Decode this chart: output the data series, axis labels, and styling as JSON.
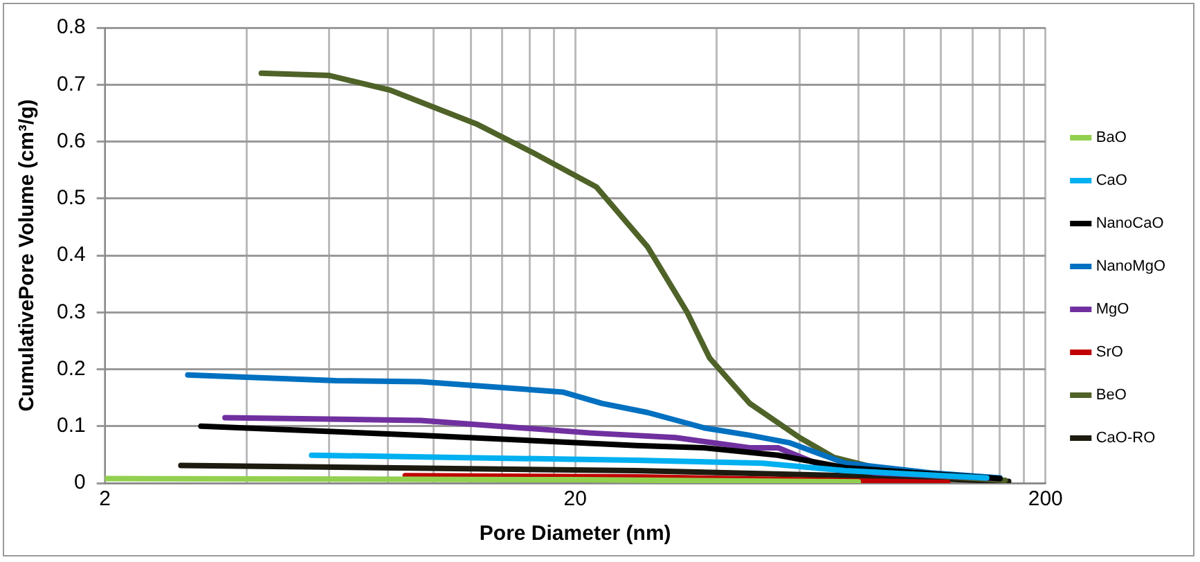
{
  "chart_data": {
    "type": "line",
    "xlabel": "Pore Diameter (nm)",
    "ylabel": "CumulativePore Volume (cm³/g)",
    "log": "x",
    "xlim": [
      2,
      200
    ],
    "xticks": [
      2,
      {
        "value": 4,
        "label": null
      },
      {
        "value": 6,
        "label": null
      },
      {
        "value": 8,
        "label": null
      },
      {
        "value": 10,
        "label": null
      },
      {
        "value": 12,
        "label": null
      },
      {
        "value": 14,
        "label": null
      },
      {
        "value": 16,
        "label": null
      },
      {
        "value": 18,
        "label": null
      },
      20,
      {
        "value": 40,
        "label": null
      },
      {
        "value": 60,
        "label": null
      },
      {
        "value": 80,
        "label": null
      },
      {
        "value": 100,
        "label": null
      },
      {
        "value": 120,
        "label": null
      },
      {
        "value": 140,
        "label": null
      },
      {
        "value": 160,
        "label": null
      },
      {
        "value": 180,
        "label": null
      },
      200
    ],
    "ylim": [
      0,
      0.8
    ],
    "yticks": [
      0,
      0.1,
      0.2,
      0.3,
      0.4,
      0.5,
      0.6,
      0.7,
      0.8
    ],
    "grid": true,
    "legend": "right",
    "marker": "none",
    "line_style": "solid",
    "series": [
      {
        "name": "BaO",
        "color": "#92d050",
        "x": [
          2,
          20,
          80
        ],
        "values": [
          0.008,
          0.006,
          0.002
        ]
      },
      {
        "name": "CaO",
        "color": "#00b0f0",
        "x": [
          5.5,
          27,
          50,
          75,
          150
        ],
        "values": [
          0.049,
          0.04,
          0.035,
          0.022,
          0.009
        ]
      },
      {
        "name": "NanoCaO",
        "color": "#000000",
        "x": [
          3.2,
          9.4,
          27,
          37.6,
          54,
          75,
          160
        ],
        "values": [
          0.1,
          0.084,
          0.066,
          0.062,
          0.049,
          0.027,
          0.008
        ]
      },
      {
        "name": "NanoMgO",
        "color": "#0070c0",
        "x": [
          3,
          6.2,
          9.4,
          18.8,
          22.8,
          28.5,
          37.6,
          47,
          57,
          75,
          114,
          160
        ],
        "values": [
          0.19,
          0.18,
          0.178,
          0.16,
          0.14,
          0.124,
          0.097,
          0.084,
          0.071,
          0.035,
          0.018,
          0.009
        ]
      },
      {
        "name": "MgO",
        "color": "#7030a0",
        "x": [
          3.6,
          9.4,
          21.6,
          32.7,
          47,
          54,
          65,
          87,
          160
        ],
        "values": [
          0.115,
          0.11,
          0.088,
          0.08,
          0.062,
          0.062,
          0.035,
          0.018,
          0.008
        ]
      },
      {
        "name": "SrO",
        "color": "#c00000",
        "x": [
          8.7,
          27,
          124
        ],
        "values": [
          0.013,
          0.011,
          0.001
        ]
      },
      {
        "name": "BeO",
        "color": "#4f6228",
        "x": [
          4.3,
          6,
          8.1,
          12.4,
          16.3,
          22.2,
          28.5,
          34.6,
          38.6,
          47,
          60,
          71,
          87,
          114,
          164
        ],
        "values": [
          0.72,
          0.716,
          0.69,
          0.63,
          0.58,
          0.52,
          0.415,
          0.3,
          0.22,
          0.14,
          0.08,
          0.045,
          0.027,
          0.013,
          0.005
        ]
      },
      {
        "name": "CaO-RO",
        "color": "#1d1b10",
        "x": [
          2.9,
          27,
          75,
          167
        ],
        "values": [
          0.031,
          0.022,
          0.013,
          0.003
        ]
      }
    ]
  }
}
